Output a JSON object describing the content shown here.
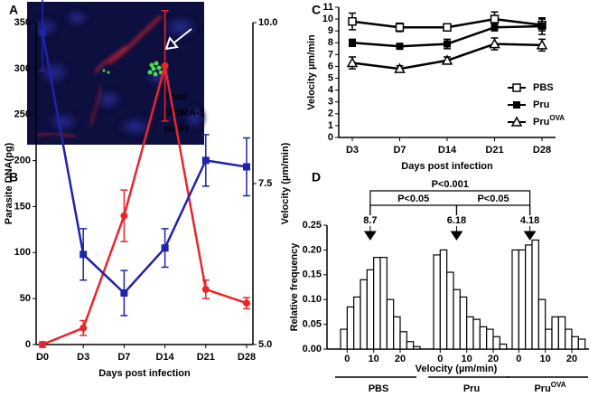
{
  "image_panel": {
    "label": "A",
    "channels": [
      {
        "text": "Toxo",
        "color": "#3ddc3d"
      },
      {
        "text": "MOMA-1",
        "color": "#e0202a"
      },
      {
        "text": "DAPI",
        "color": "#2a2ad8"
      }
    ]
  },
  "chart_data": [
    {
      "panel": "B",
      "type": "line",
      "x_label": "Days post infection",
      "y_label": "Parasite DNA(pg)",
      "y2_label": "Velocity (µm/min)",
      "categories": [
        "D0",
        "D3",
        "D7",
        "D14",
        "D21",
        "D28"
      ],
      "ylim": [
        0,
        350
      ],
      "yticks": [
        0,
        50,
        100,
        150,
        200,
        250,
        300,
        350
      ],
      "y2lim": [
        5,
        10
      ],
      "y2ticks": [
        {
          "value": 5,
          "label": "5.0"
        },
        {
          "value": 7.5,
          "label": "7.5"
        },
        {
          "value": 10,
          "label": "10.0"
        }
      ],
      "series": [
        {
          "color": "#e8262a",
          "marker": "circle",
          "values": [
            0,
            18,
            140,
            303,
            60,
            45
          ],
          "errors": [
            3,
            8,
            28,
            60,
            10,
            6
          ]
        },
        {
          "color": "#1f23a8",
          "marker": "square",
          "axis": "y2",
          "values": [
            9.85,
            6.4,
            5.8,
            6.5,
            7.86,
            7.76
          ],
          "errors": [
            0.6,
            0.4,
            0.35,
            0.3,
            0.4,
            0.45
          ]
        }
      ]
    },
    {
      "panel": "C",
      "type": "line",
      "x_label": "Days post infection",
      "y_label": "Velocity µm/min",
      "categories": [
        "D3",
        "D7",
        "D14",
        "D21",
        "D28"
      ],
      "ylim": [
        0,
        11
      ],
      "yticks": [
        0,
        1,
        2,
        3,
        4,
        5,
        6,
        7,
        8,
        9,
        10,
        11
      ],
      "legend": "lower right",
      "series": [
        {
          "name": "PBS",
          "color": "#000000",
          "marker": "square-open",
          "values": [
            9.8,
            9.3,
            9.3,
            10.0,
            9.5
          ],
          "errors": [
            0.7,
            0.35,
            0.3,
            0.6,
            0.5
          ]
        },
        {
          "name": "Pru",
          "color": "#000000",
          "marker": "square",
          "values": [
            8.0,
            7.7,
            7.9,
            9.3,
            9.4
          ],
          "errors": [
            0.3,
            0.2,
            0.4,
            0.3,
            0.7
          ]
        },
        {
          "name": "Pru",
          "name_superscript": "OVA",
          "color": "#000000",
          "marker": "triangle-open",
          "values": [
            6.3,
            5.8,
            6.5,
            7.9,
            7.8
          ],
          "errors": [
            0.5,
            0.25,
            0.3,
            0.5,
            0.5
          ]
        }
      ]
    },
    {
      "panel": "D",
      "type": "histogram",
      "x_label": "Velocity (µm/min)",
      "y_label": "Relative frequency",
      "ylim": [
        0,
        0.25
      ],
      "yticks": [
        {
          "value": 0,
          "label": "0.00"
        },
        {
          "value": 0.05,
          "label": "0.05"
        },
        {
          "value": 0.1,
          "label": "0.10"
        },
        {
          "value": 0.15,
          "label": "0.15"
        },
        {
          "value": 0.2,
          "label": "0.20"
        },
        {
          "value": 0.25,
          "label": "0.25"
        }
      ],
      "xlim": [
        -2.5,
        27.5
      ],
      "xticks": [
        0,
        10,
        20
      ],
      "series": [
        {
          "name": "PBS",
          "median": 8.7,
          "bins": [
            -2.5,
            0,
            2.5,
            5,
            7.5,
            10,
            12.5,
            15,
            17.5,
            20,
            22.5,
            25,
            27.5
          ],
          "values": [
            0.04,
            0.085,
            0.105,
            0.14,
            0.16,
            0.185,
            0.185,
            0.1,
            0.065,
            0.035,
            0.015,
            0.005
          ]
        },
        {
          "name": "Pru",
          "median": 6.18,
          "bins": [
            -2.5,
            0,
            2.5,
            5,
            7.5,
            10,
            12.5,
            15,
            17.5,
            20,
            22.5,
            25
          ],
          "values": [
            0.19,
            0.2,
            0.155,
            0.12,
            0.105,
            0.065,
            0.06,
            0.045,
            0.04,
            0.025,
            0.01
          ]
        },
        {
          "name": "Pru",
          "name_superscript": "OVA",
          "median": 4.18,
          "bins": [
            -2.5,
            0,
            2.5,
            5,
            7.5,
            10,
            12.5,
            15,
            17.5,
            20,
            22.5,
            25
          ],
          "values": [
            0.2,
            0.2,
            0.21,
            0.22,
            0.1,
            0.04,
            0.065,
            0.065,
            0.04,
            0.025,
            0.02
          ]
        }
      ],
      "comparisons": [
        {
          "label": "P<0.001",
          "between": [
            0,
            2
          ]
        },
        {
          "label": "P<0.05",
          "between": [
            0,
            1
          ]
        },
        {
          "label": "P<0.05",
          "between": [
            1,
            2
          ]
        }
      ]
    }
  ]
}
